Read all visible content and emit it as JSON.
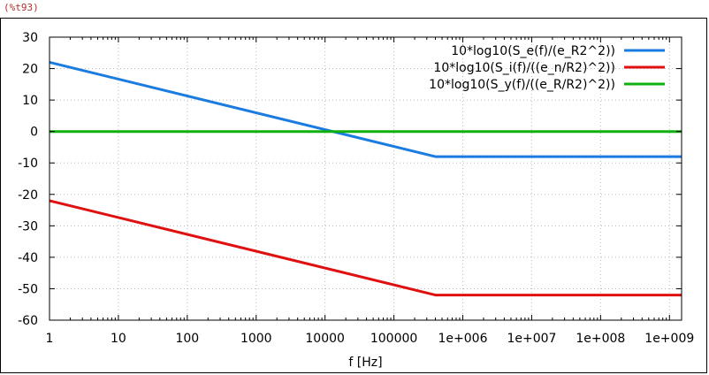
{
  "cell_label": "(%t93)",
  "chart_data": {
    "type": "line",
    "title": "",
    "xlabel": "f [Hz]",
    "ylabel": "",
    "x_scale": "log",
    "xlim": [
      1,
      1500000000.0
    ],
    "ylim": [
      -60,
      30
    ],
    "grid": true,
    "legend_position": "top-right",
    "x_ticks": [
      {
        "value": 1,
        "label": "1"
      },
      {
        "value": 10,
        "label": "10"
      },
      {
        "value": 100,
        "label": "100"
      },
      {
        "value": 1000,
        "label": "1000"
      },
      {
        "value": 10000,
        "label": "10000"
      },
      {
        "value": 100000,
        "label": "100000"
      },
      {
        "value": 1000000,
        "label": "1e+006"
      },
      {
        "value": 10000000,
        "label": "1e+007"
      },
      {
        "value": 100000000,
        "label": "1e+008"
      },
      {
        "value": 1000000000,
        "label": "1e+009"
      }
    ],
    "y_ticks": [
      {
        "value": 30,
        "label": "30"
      },
      {
        "value": 20,
        "label": "20"
      },
      {
        "value": 10,
        "label": "10"
      },
      {
        "value": 0,
        "label": "0"
      },
      {
        "value": -10,
        "label": "-10"
      },
      {
        "value": -20,
        "label": "-20"
      },
      {
        "value": -30,
        "label": "-30"
      },
      {
        "value": -40,
        "label": "-40"
      },
      {
        "value": -50,
        "label": "-50"
      },
      {
        "value": -60,
        "label": "-60"
      }
    ],
    "series": [
      {
        "name": "10*log10(S_e(f)/(e_R2^2))",
        "color": "#1a7be0",
        "points": [
          [
            1,
            22
          ],
          [
            400000,
            -8
          ],
          [
            1500000000,
            -8
          ]
        ]
      },
      {
        "name": "10*log10(S_i(f)/((e_n/R2)^2))",
        "color": "#e01010",
        "points": [
          [
            1,
            -22
          ],
          [
            400000,
            -52
          ],
          [
            1500000000,
            -52
          ]
        ]
      },
      {
        "name": "10*log10(S_y(f)/((e_R/R2)^2))",
        "color": "#10b010",
        "points": [
          [
            1,
            0
          ],
          [
            1500000000,
            0
          ]
        ]
      }
    ]
  }
}
